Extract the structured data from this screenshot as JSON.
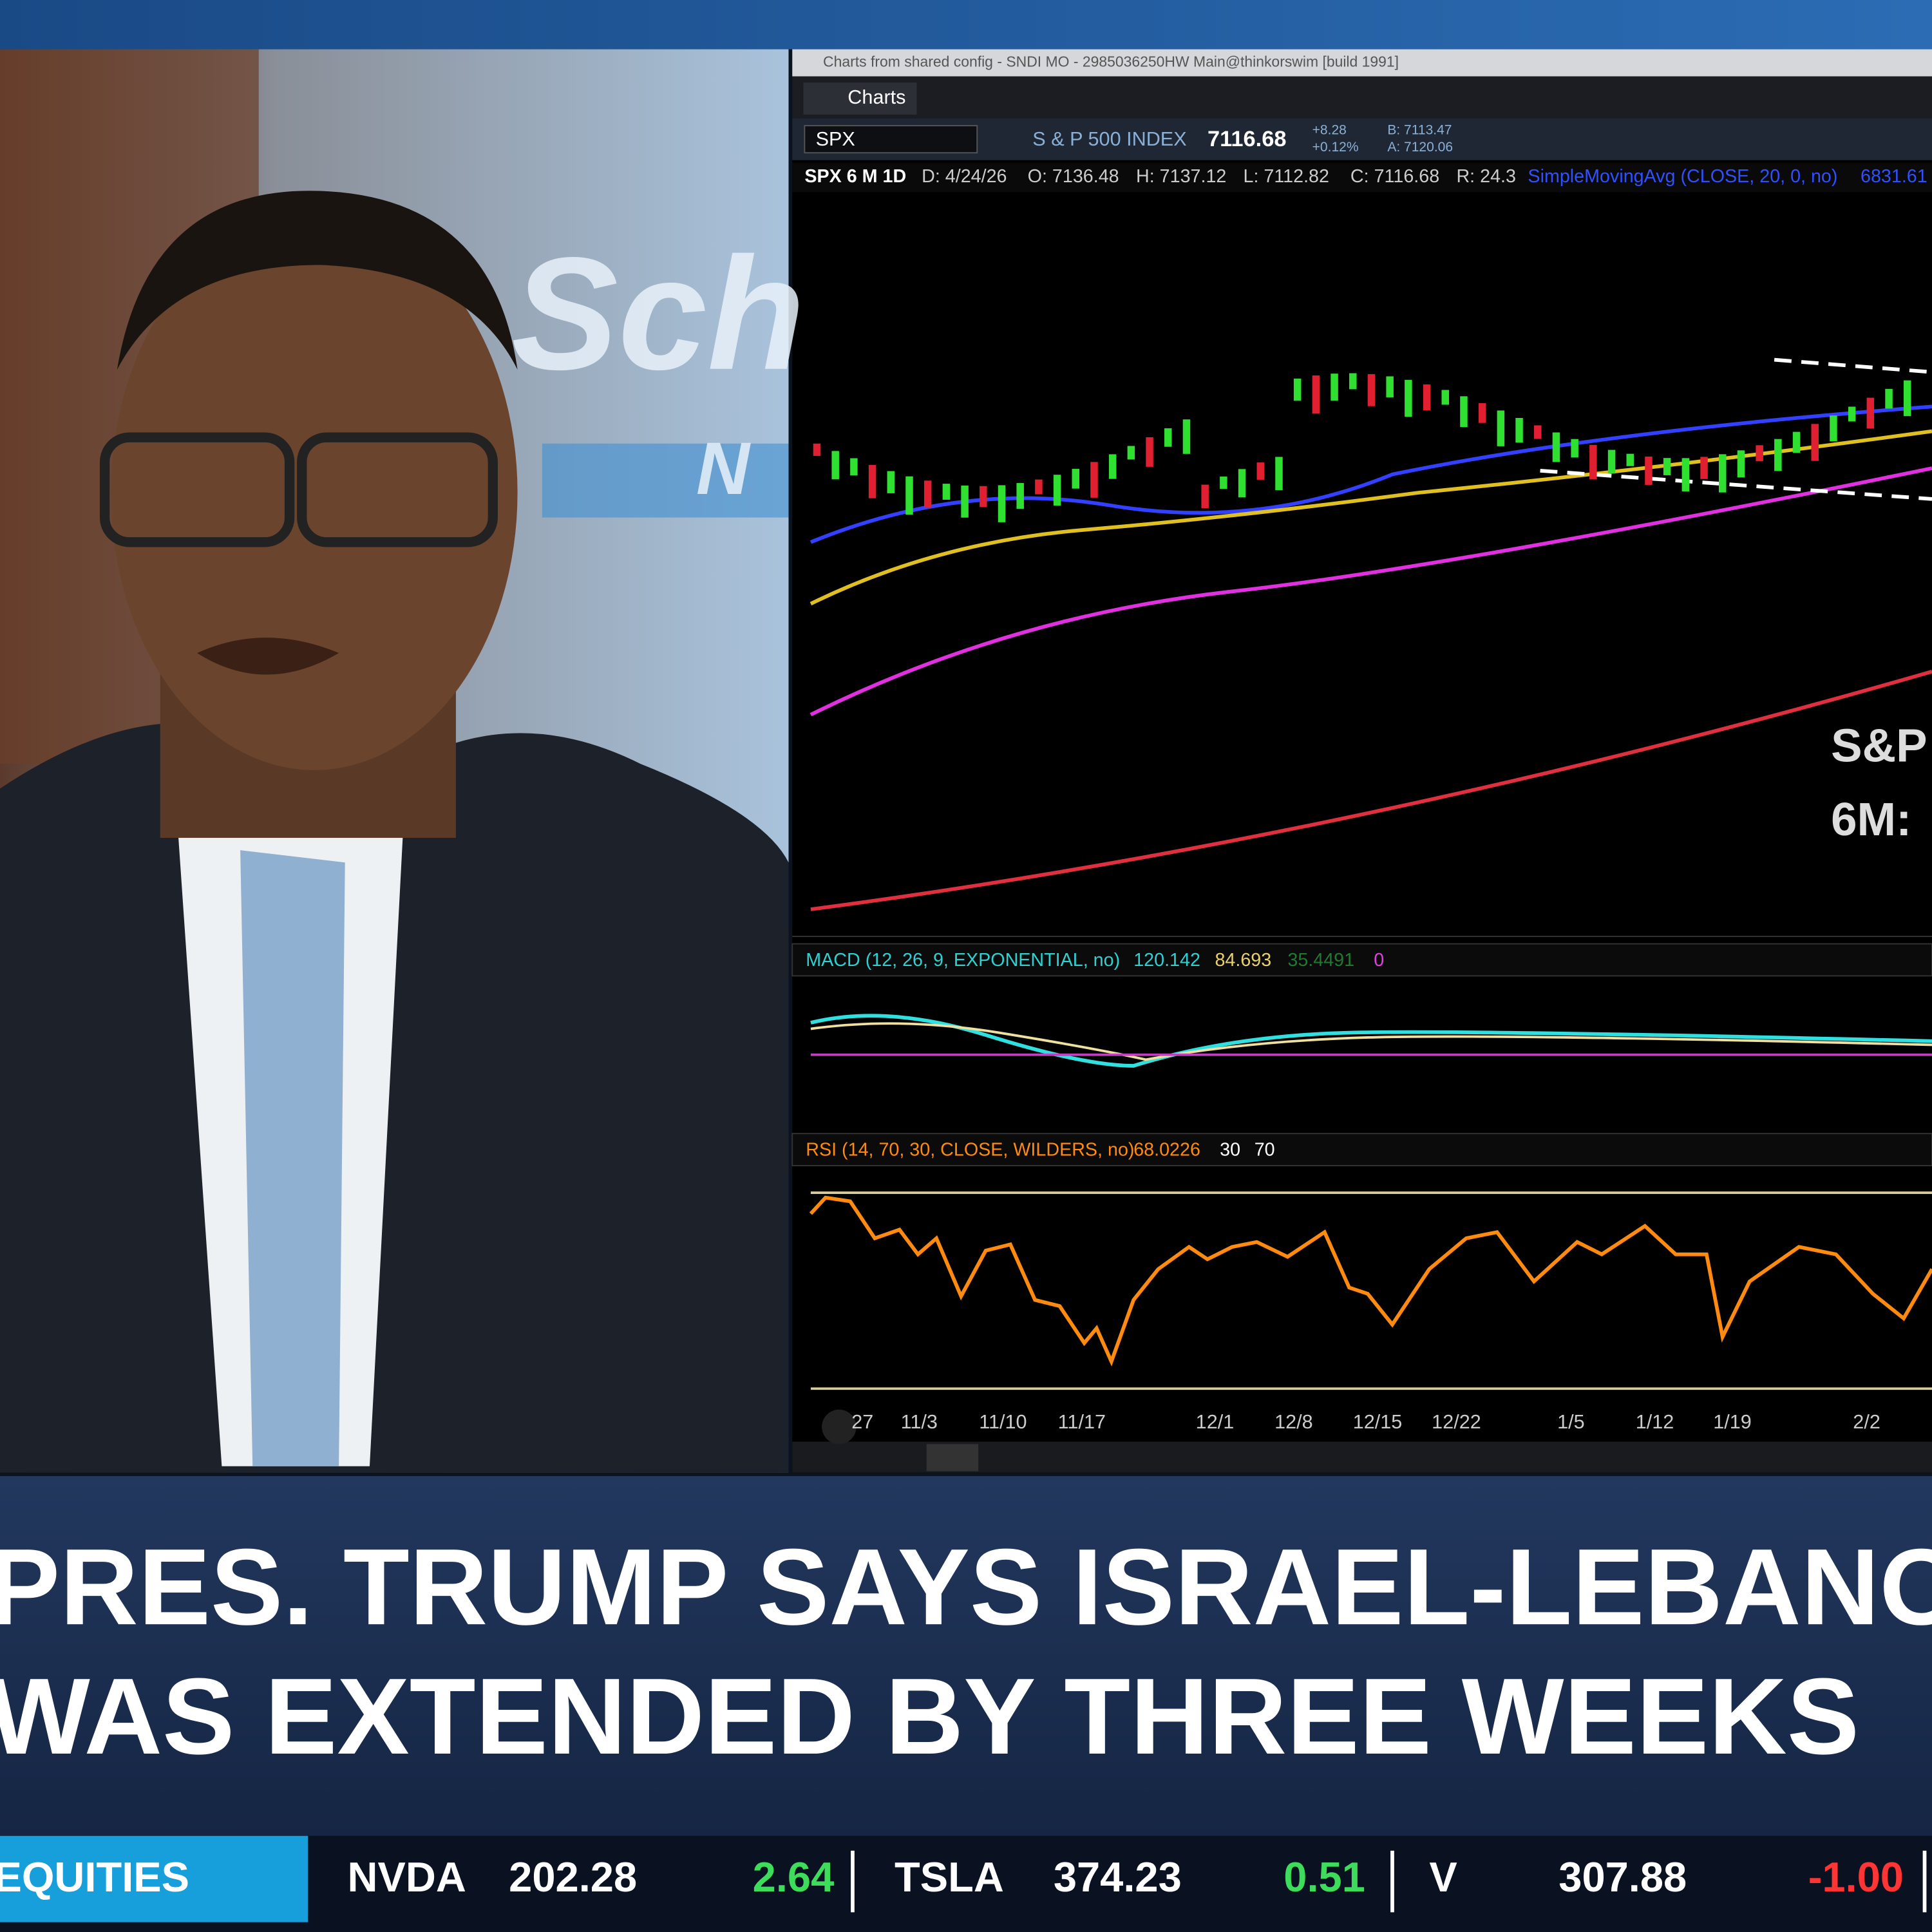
{
  "window_title": "Charts from shared config - SNDI MO - 2985036250HW Main@thinkorswim [build 1991]",
  "chart_tab": "Charts",
  "quote": {
    "symbol": "SPX",
    "name": "S & P 500 INDEX",
    "last": "7116.68",
    "change": "+8.28",
    "change_pct": "+0.12%",
    "bid": "B: 7113.47",
    "ask": "A: 7120.06"
  },
  "chart_header": [
    "SPX 6 M 1D",
    "D: 4/24/26",
    "O: 7136.48",
    "H: 7137.12",
    "L: 7112.82",
    "C: 7116.68",
    "R: 24.3",
    "SimpleMovingAvg (CLOSE, 20, 0, no)",
    "6831.61"
  ],
  "chart_annotation": [
    "S&P",
    "6M:"
  ],
  "macd": {
    "label": "MACD (12, 26, 9, EXPONENTIAL, no)",
    "values": [
      "120.142",
      "84.693",
      "35.4491",
      "0"
    ]
  },
  "rsi": {
    "label": "RSI (14, 70, 30, CLOSE, WILDERS, no)",
    "values": [
      "68.0226",
      "30",
      "70"
    ]
  },
  "x_axis": [
    "27",
    "11/3",
    "11/10",
    "11/17",
    "12/1",
    "12/8",
    "12/15",
    "12/22",
    "1/5",
    "1/12",
    "1/19",
    "2/2"
  ],
  "background_logo": [
    "Sch",
    "N"
  ],
  "headline": [
    "PRES. TRUMP SAYS ISRAEL-LEBANON C",
    "WAS EXTENDED BY THREE WEEKS"
  ],
  "ticker": {
    "section": "EQUITIES",
    "items": [
      {
        "symbol": "NVDA",
        "price": "202.28",
        "change": "2.64"
      },
      {
        "symbol": "TSLA",
        "price": "374.23",
        "change": "0.51"
      },
      {
        "symbol": "V",
        "price": "307.88",
        "change": "-1.00"
      }
    ]
  }
}
